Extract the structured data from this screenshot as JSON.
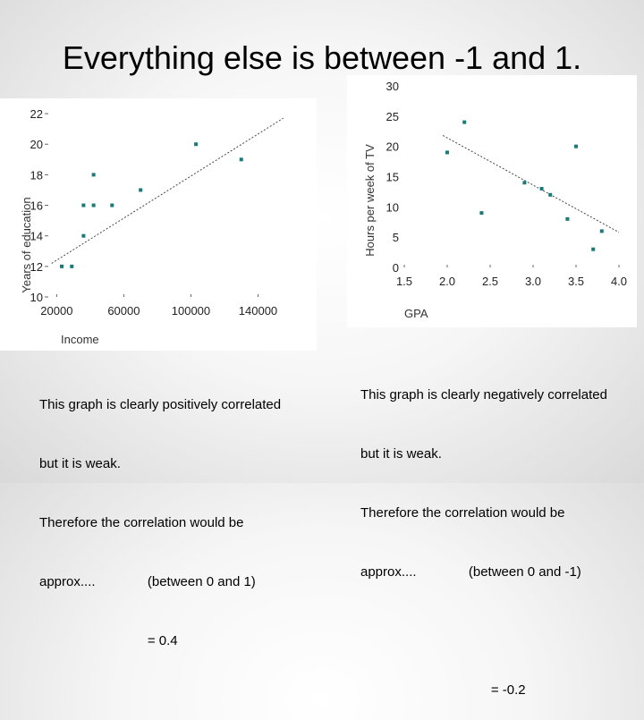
{
  "slide": {
    "title": "Everything else is between -1 and 1."
  },
  "left_caption": {
    "lines": [
      "This graph is clearly positively correlated",
      "but it is weak.",
      "Therefore the correlation would be",
      "approx....              (between 0 and 1)",
      "                             = 0.4"
    ]
  },
  "right_caption": {
    "lines": [
      "This graph is clearly negatively correlated",
      "but it is weak.",
      "Therefore the correlation would be",
      "approx....              (between 0 and -1)",
      "",
      "                                   = -0.2"
    ]
  },
  "chart_data": [
    {
      "type": "scatter",
      "xlabel": "Income",
      "ylabel": "Years of education",
      "xlim": [
        15000,
        160000
      ],
      "ylim": [
        10,
        23
      ],
      "x_ticks": [
        {
          "value": 20000,
          "label": "20000"
        },
        {
          "value": 60000,
          "label": "60000"
        },
        {
          "value": 100000,
          "label": "100000"
        },
        {
          "value": 140000,
          "label": "140000"
        }
      ],
      "y_ticks": [
        {
          "value": 10,
          "label": "10"
        },
        {
          "value": 12,
          "label": "12"
        },
        {
          "value": 14,
          "label": "14"
        },
        {
          "value": 16,
          "label": "16"
        },
        {
          "value": 18,
          "label": "18"
        },
        {
          "value": 20,
          "label": "20"
        },
        {
          "value": 22,
          "label": "22"
        }
      ],
      "points": [
        {
          "x": 23000,
          "y": 12
        },
        {
          "x": 29000,
          "y": 12
        },
        {
          "x": 36000,
          "y": 14
        },
        {
          "x": 36000,
          "y": 16
        },
        {
          "x": 42000,
          "y": 16
        },
        {
          "x": 42000,
          "y": 18
        },
        {
          "x": 53000,
          "y": 16
        },
        {
          "x": 70000,
          "y": 17
        },
        {
          "x": 103000,
          "y": 20
        },
        {
          "x": 130000,
          "y": 19
        }
      ],
      "trend_line": [
        {
          "x": 17000,
          "y": 12.2
        },
        {
          "x": 155000,
          "y": 21.7
        }
      ],
      "grid": false,
      "color": "#1a7a7a"
    },
    {
      "type": "scatter",
      "xlabel": "GPA",
      "ylabel": "Hours per week of TV",
      "xlim": [
        1.5,
        4.0
      ],
      "ylim": [
        0,
        30
      ],
      "x_ticks": [
        {
          "value": 1.5,
          "label": "1.5"
        },
        {
          "value": 2.0,
          "label": "2.0"
        },
        {
          "value": 2.5,
          "label": "2.5"
        },
        {
          "value": 3.0,
          "label": "3.0"
        },
        {
          "value": 3.5,
          "label": "3.5"
        },
        {
          "value": 4.0,
          "label": "4.0"
        }
      ],
      "y_ticks": [
        {
          "value": 0,
          "label": "0"
        },
        {
          "value": 5,
          "label": "5"
        },
        {
          "value": 10,
          "label": "10"
        },
        {
          "value": 15,
          "label": "15"
        },
        {
          "value": 20,
          "label": "20"
        },
        {
          "value": 25,
          "label": "25"
        },
        {
          "value": 30,
          "label": "30"
        }
      ],
      "points": [
        {
          "x": 2.0,
          "y": 19
        },
        {
          "x": 2.2,
          "y": 24
        },
        {
          "x": 2.4,
          "y": 9
        },
        {
          "x": 2.9,
          "y": 14
        },
        {
          "x": 3.1,
          "y": 13
        },
        {
          "x": 3.2,
          "y": 12
        },
        {
          "x": 3.4,
          "y": 8
        },
        {
          "x": 3.5,
          "y": 20
        },
        {
          "x": 3.7,
          "y": 3
        },
        {
          "x": 3.8,
          "y": 6
        }
      ],
      "trend_line": [
        {
          "x": 1.95,
          "y": 21.8
        },
        {
          "x": 4.0,
          "y": 5.8
        }
      ],
      "grid": false,
      "color": "#1a7a7a"
    }
  ]
}
